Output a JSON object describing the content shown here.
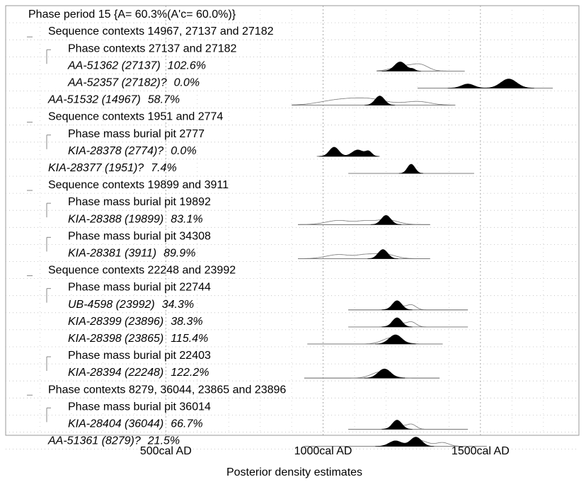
{
  "chart_data": {
    "type": "density",
    "xlabel": "Posterior density estimates",
    "xlim": [
      0,
      1750
    ],
    "x_ticks": [
      {
        "value": 500,
        "label": "500cal AD"
      },
      {
        "value": 1000,
        "label": "1000cal AD"
      },
      {
        "value": 1500,
        "label": "1500cal AD"
      }
    ],
    "grid": true,
    "rows": [
      {
        "indent": 0,
        "label": "Phase period 15 {A= 60.3%(A'c= 60.0%)}",
        "italic": false
      },
      {
        "indent": 1,
        "label": "Sequence contexts 14967, 27137 and 27182",
        "italic": false
      },
      {
        "indent": 2,
        "label": "Phase contexts 27137 and 27182",
        "italic": false
      },
      {
        "indent": 2,
        "label": "AA-51362 (27137)",
        "agreement": "102.6%",
        "italic": true,
        "prior": {
          "range": [
            1170,
            1450
          ],
          "peaks": [
            [
              1255,
              35,
              0.55
            ],
            [
              1310,
              25,
              0.6
            ]
          ]
        },
        "posterior": {
          "peaks": [
            [
              1245,
              18,
              1.0
            ],
            [
              1285,
              8,
              0.2
            ]
          ]
        }
      },
      {
        "indent": 2,
        "label": "AA-52357 (27182)?",
        "agreement": "0.0%",
        "italic": true,
        "prior": {
          "range": [
            1300,
            1730
          ],
          "peaks": []
        },
        "posterior": {
          "peaks": [
            [
              1460,
              20,
              0.45
            ],
            [
              1590,
              25,
              1.0
            ]
          ]
        }
      },
      {
        "indent": 1,
        "label": "AA-51532 (14967)",
        "agreement": "58.7%",
        "italic": true,
        "prior": {
          "range": [
            900,
            1420
          ],
          "peaks": [
            [
              1050,
              60,
              0.55
            ],
            [
              1150,
              55,
              0.6
            ],
            [
              1300,
              40,
              0.4
            ]
          ]
        },
        "posterior": {
          "peaks": [
            [
              1180,
              15,
              1.0
            ]
          ]
        }
      },
      {
        "indent": 1,
        "label": "Sequence contexts 1951 and 2774",
        "italic": false
      },
      {
        "indent": 2,
        "label": "Phase mass burial pit 2777",
        "italic": false
      },
      {
        "indent": 2,
        "label": "KIA-28378 (2774)?",
        "agreement": "0.0%",
        "italic": true,
        "prior": {
          "range": [
            980,
            1180
          ],
          "peaks": []
        },
        "posterior": {
          "peaks": [
            [
              1035,
              15,
              1.0
            ],
            [
              1110,
              18,
              0.7
            ],
            [
              1145,
              10,
              0.5
            ]
          ]
        }
      },
      {
        "indent": 1,
        "label": "KIA-28377 (1951)?",
        "agreement": "7.4%",
        "italic": true,
        "prior": {
          "range": [
            1080,
            1480
          ],
          "peaks": []
        },
        "posterior": {
          "peaks": [
            [
              1280,
              12,
              1.0
            ]
          ]
        }
      },
      {
        "indent": 1,
        "label": "Sequence contexts 19899 and 3911",
        "italic": false
      },
      {
        "indent": 2,
        "label": "Phase mass burial pit 19892",
        "italic": false
      },
      {
        "indent": 2,
        "label": "KIA-28388 (19899)",
        "agreement": "83.1%",
        "italic": true,
        "prior": {
          "range": [
            920,
            1340
          ],
          "peaks": [
            [
              1050,
              40,
              0.45
            ],
            [
              1130,
              25,
              0.3
            ],
            [
              1200,
              35,
              0.55
            ]
          ]
        },
        "posterior": {
          "peaks": [
            [
              1200,
              15,
              1.0
            ]
          ]
        }
      },
      {
        "indent": 2,
        "label": "Phase mass burial pit 34308",
        "italic": false
      },
      {
        "indent": 2,
        "label": "KIA-28381 (3911)",
        "agreement": "89.9%",
        "italic": true,
        "prior": {
          "range": [
            920,
            1340
          ],
          "peaks": [
            [
              1050,
              40,
              0.45
            ],
            [
              1130,
              25,
              0.3
            ],
            [
              1190,
              35,
              0.55
            ]
          ]
        },
        "posterior": {
          "peaks": [
            [
              1190,
              15,
              1.0
            ]
          ]
        }
      },
      {
        "indent": 1,
        "label": "Sequence contexts 22248 and 23992",
        "italic": false
      },
      {
        "indent": 2,
        "label": "Phase mass burial pit 22744",
        "italic": false
      },
      {
        "indent": 2,
        "label": "UB-4598 (23992)",
        "agreement": "34.3%",
        "italic": true,
        "prior": {
          "range": [
            1080,
            1460
          ],
          "peaks": [
            [
              1235,
              18,
              0.55
            ],
            [
              1280,
              15,
              0.55
            ]
          ]
        },
        "posterior": {
          "peaks": [
            [
              1235,
              15,
              1.0
            ]
          ]
        }
      },
      {
        "indent": 2,
        "label": "KIA-28399 (23896)",
        "agreement": "38.3%",
        "italic": true,
        "prior": {
          "range": [
            1080,
            1460
          ],
          "peaks": [
            [
              1235,
              18,
              0.55
            ],
            [
              1280,
              15,
              0.55
            ]
          ]
        },
        "posterior": {
          "peaks": [
            [
              1235,
              15,
              1.0
            ]
          ]
        }
      },
      {
        "indent": 2,
        "label": "KIA-28398 (23865)",
        "agreement": "115.4%",
        "italic": true,
        "prior": {
          "range": [
            950,
            1380
          ],
          "peaks": [
            [
              1220,
              30,
              0.7
            ]
          ]
        },
        "posterior": {
          "peaks": [
            [
              1230,
              20,
              1.0
            ]
          ]
        }
      },
      {
        "indent": 2,
        "label": "Phase mass burial pit 22403",
        "italic": false
      },
      {
        "indent": 2,
        "label": "KIA-28394 (22248)",
        "agreement": "122.2%",
        "italic": true,
        "prior": {
          "range": [
            940,
            1370
          ],
          "peaks": [
            [
              1185,
              30,
              0.7
            ]
          ]
        },
        "posterior": {
          "peaks": [
            [
              1195,
              20,
              1.0
            ]
          ]
        }
      },
      {
        "indent": 1,
        "label": "Phase contexts 8279, 36044, 23865 and 23896",
        "italic": false
      },
      {
        "indent": 2,
        "label": "Phase mass burial pit 36014",
        "italic": false
      },
      {
        "indent": 2,
        "label": "KIA-28404 (36044)",
        "agreement": "66.7%",
        "italic": true,
        "prior": {
          "range": [
            1080,
            1460
          ],
          "peaks": [
            [
              1235,
              18,
              0.55
            ],
            [
              1280,
              15,
              0.55
            ]
          ]
        },
        "posterior": {
          "peaks": [
            [
              1235,
              15,
              1.0
            ]
          ]
        }
      },
      {
        "indent": 1,
        "label": "AA-51361 (8279)?",
        "agreement": "21.5%",
        "italic": true,
        "prior": {
          "range": [
            940,
            1520
          ],
          "peaks": [
            [
              1300,
              30,
              0.7
            ],
            [
              1380,
              20,
              0.4
            ]
          ]
        },
        "posterior": {
          "peaks": [
            [
              1230,
              20,
              0.6
            ],
            [
              1295,
              18,
              1.0
            ]
          ]
        }
      }
    ]
  }
}
